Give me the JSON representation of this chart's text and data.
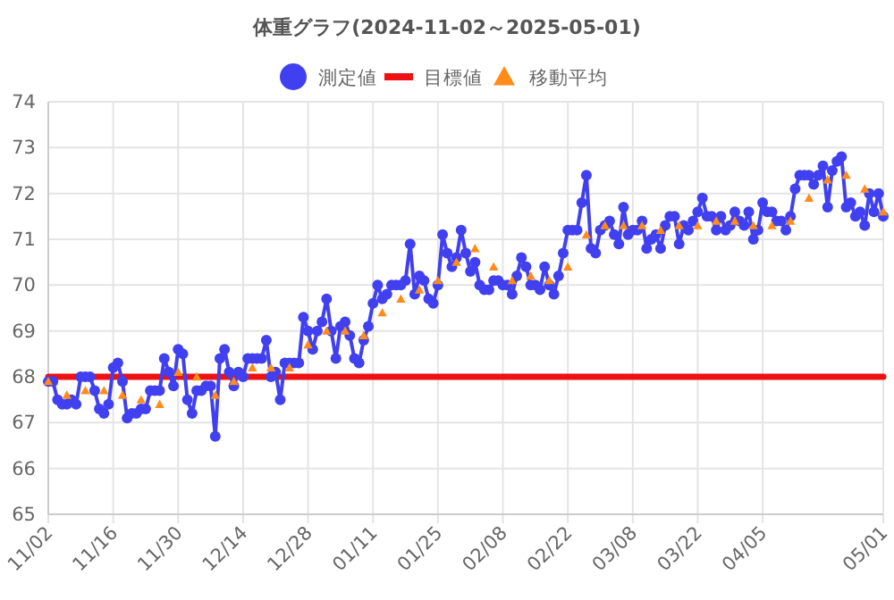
{
  "chart_data": {
    "type": "line",
    "title": "体重グラフ(2024-11-02～2025-05-01)",
    "xlim": [
      "2024-11-02",
      "2025-05-01"
    ],
    "xticks": [
      {
        "value": "2024-11-02",
        "label": "11/02"
      },
      {
        "value": "2024-11-16",
        "label": "11/16"
      },
      {
        "value": "2024-11-30",
        "label": "11/30"
      },
      {
        "value": "2024-12-14",
        "label": "12/14"
      },
      {
        "value": "2024-12-28",
        "label": "12/28"
      },
      {
        "value": "2025-01-11",
        "label": "01/11"
      },
      {
        "value": "2025-01-25",
        "label": "01/25"
      },
      {
        "value": "2025-02-08",
        "label": "02/08"
      },
      {
        "value": "2025-02-22",
        "label": "02/22"
      },
      {
        "value": "2025-03-08",
        "label": "03/08"
      },
      {
        "value": "2025-03-22",
        "label": "03/22"
      },
      {
        "value": "2025-04-05",
        "label": "04/05"
      },
      {
        "value": "2025-05-01",
        "label": "05/01"
      }
    ],
    "ylim": [
      65,
      74
    ],
    "yticks": [
      65,
      66,
      67,
      68,
      69,
      70,
      71,
      72,
      73,
      74
    ],
    "grid": true,
    "legend": "top",
    "series": [
      {
        "name": "測定値",
        "marker": "circle",
        "color": "#4040f0",
        "x": [
          "2024-11-02",
          "2024-11-03",
          "2024-11-04",
          "2024-11-05",
          "2024-11-06",
          "2024-11-07",
          "2024-11-08",
          "2024-11-09",
          "2024-11-10",
          "2024-11-11",
          "2024-11-12",
          "2024-11-13",
          "2024-11-14",
          "2024-11-15",
          "2024-11-16",
          "2024-11-17",
          "2024-11-18",
          "2024-11-19",
          "2024-11-20",
          "2024-11-21",
          "2024-11-22",
          "2024-11-23",
          "2024-11-24",
          "2024-11-25",
          "2024-11-26",
          "2024-11-27",
          "2024-11-28",
          "2024-11-29",
          "2024-11-30",
          "2024-12-01",
          "2024-12-02",
          "2024-12-03",
          "2024-12-04",
          "2024-12-05",
          "2024-12-06",
          "2024-12-07",
          "2024-12-08",
          "2024-12-09",
          "2024-12-10",
          "2024-12-11",
          "2024-12-12",
          "2024-12-13",
          "2024-12-14",
          "2024-12-15",
          "2024-12-16",
          "2024-12-17",
          "2024-12-18",
          "2024-12-19",
          "2024-12-20",
          "2024-12-21",
          "2024-12-22",
          "2024-12-23",
          "2024-12-24",
          "2024-12-25",
          "2024-12-26",
          "2024-12-27",
          "2024-12-28",
          "2024-12-29",
          "2024-12-30",
          "2024-12-31",
          "2025-01-01",
          "2025-01-02",
          "2025-01-03",
          "2025-01-04",
          "2025-01-05",
          "2025-01-06",
          "2025-01-07",
          "2025-01-08",
          "2025-01-09",
          "2025-01-10",
          "2025-01-11",
          "2025-01-12",
          "2025-01-13",
          "2025-01-14",
          "2025-01-15",
          "2025-01-16",
          "2025-01-17",
          "2025-01-18",
          "2025-01-19",
          "2025-01-20",
          "2025-01-21",
          "2025-01-22",
          "2025-01-23",
          "2025-01-24",
          "2025-01-25",
          "2025-01-26",
          "2025-01-27",
          "2025-01-28",
          "2025-01-29",
          "2025-01-30",
          "2025-01-31",
          "2025-02-01",
          "2025-02-02",
          "2025-02-03",
          "2025-02-04",
          "2025-02-05",
          "2025-02-06",
          "2025-02-07",
          "2025-02-08",
          "2025-02-09",
          "2025-02-10",
          "2025-02-11",
          "2025-02-12",
          "2025-02-13",
          "2025-02-14",
          "2025-02-15",
          "2025-02-16",
          "2025-02-17",
          "2025-02-18",
          "2025-02-19",
          "2025-02-20",
          "2025-02-21",
          "2025-02-22",
          "2025-02-23",
          "2025-02-24",
          "2025-02-25",
          "2025-02-26",
          "2025-02-27",
          "2025-02-28",
          "2025-03-01",
          "2025-03-02",
          "2025-03-03",
          "2025-03-04",
          "2025-03-05",
          "2025-03-06",
          "2025-03-07",
          "2025-03-08",
          "2025-03-09",
          "2025-03-10",
          "2025-03-11",
          "2025-03-12",
          "2025-03-13",
          "2025-03-14",
          "2025-03-15",
          "2025-03-16",
          "2025-03-17",
          "2025-03-18",
          "2025-03-19",
          "2025-03-20",
          "2025-03-21",
          "2025-03-22",
          "2025-03-23",
          "2025-03-24",
          "2025-03-25",
          "2025-03-26",
          "2025-03-27",
          "2025-03-28",
          "2025-03-29",
          "2025-03-30",
          "2025-03-31",
          "2025-04-01",
          "2025-04-02",
          "2025-04-03",
          "2025-04-04",
          "2025-04-05",
          "2025-04-06",
          "2025-04-07",
          "2025-04-08",
          "2025-04-09",
          "2025-04-10",
          "2025-04-11",
          "2025-04-12",
          "2025-04-13",
          "2025-04-14",
          "2025-04-15",
          "2025-04-16",
          "2025-04-17",
          "2025-04-18",
          "2025-04-19",
          "2025-04-20",
          "2025-04-21",
          "2025-04-22",
          "2025-04-23",
          "2025-04-24",
          "2025-04-25",
          "2025-04-26",
          "2025-04-27",
          "2025-04-28",
          "2025-04-29",
          "2025-04-30",
          "2025-05-01"
        ],
        "values": [
          67.9,
          67.9,
          67.5,
          67.4,
          67.4,
          67.5,
          67.4,
          68.0,
          68.0,
          68.0,
          67.7,
          67.3,
          67.2,
          67.4,
          68.2,
          68.3,
          67.9,
          67.1,
          67.2,
          67.2,
          67.3,
          67.3,
          67.7,
          67.7,
          67.7,
          68.4,
          68.1,
          67.8,
          68.6,
          68.5,
          67.5,
          67.2,
          67.7,
          67.7,
          67.8,
          67.8,
          66.7,
          68.4,
          68.6,
          68.1,
          67.8,
          68.1,
          68.0,
          68.4,
          68.4,
          68.4,
          68.4,
          68.8,
          68.0,
          68.1,
          67.5,
          68.3,
          68.3,
          68.3,
          68.3,
          69.3,
          69.0,
          68.6,
          69.0,
          69.2,
          69.7,
          69.0,
          68.4,
          69.1,
          69.2,
          68.9,
          68.4,
          68.3,
          68.8,
          69.1,
          69.6,
          70.0,
          69.7,
          69.8,
          70.0,
          70.0,
          70.0,
          70.1,
          70.9,
          69.8,
          70.2,
          70.1,
          69.7,
          69.6,
          70.0,
          71.1,
          70.7,
          70.4,
          70.6,
          71.2,
          70.7,
          70.3,
          70.5,
          70.0,
          69.9,
          69.9,
          70.1,
          70.1,
          70.0,
          70.0,
          69.8,
          70.2,
          70.6,
          70.4,
          70.0,
          70.0,
          69.9,
          70.4,
          70.0,
          69.8,
          70.2,
          70.7,
          71.2,
          71.2,
          71.2,
          71.8,
          72.4,
          70.8,
          70.7,
          71.2,
          71.3,
          71.4,
          71.1,
          70.9,
          71.7,
          71.1,
          71.2,
          71.2,
          71.4,
          70.8,
          71.0,
          71.1,
          70.8,
          71.3,
          71.5,
          71.5,
          70.9,
          71.3,
          71.2,
          71.4,
          71.6,
          71.9,
          71.5,
          71.5,
          71.2,
          71.5,
          71.2,
          71.3,
          71.6,
          71.4,
          71.3,
          71.6,
          71.0,
          71.2,
          71.8,
          71.6,
          71.6,
          71.4,
          71.4,
          71.2,
          71.5,
          72.1,
          72.4,
          72.4,
          72.4,
          72.2,
          72.4,
          72.6,
          71.7,
          72.5,
          72.7,
          72.8,
          71.7,
          71.8,
          71.5,
          71.6,
          71.3,
          72.0,
          71.6,
          72.0,
          71.5
        ]
      },
      {
        "name": "目標値",
        "type": "line",
        "marker": "none",
        "color": "#ee1111",
        "x": [
          "2024-11-02",
          "2025-05-01"
        ],
        "values": [
          68,
          68
        ]
      },
      {
        "name": "移動平均",
        "type": "scatter",
        "marker": "triangle",
        "color": "#ff8c1a",
        "x": [
          "2024-11-02",
          "2024-11-06",
          "2024-11-10",
          "2024-11-14",
          "2024-11-18",
          "2024-11-22",
          "2024-11-26",
          "2024-11-30",
          "2024-12-04",
          "2024-12-08",
          "2024-12-12",
          "2024-12-16",
          "2024-12-20",
          "2024-12-24",
          "2024-12-28",
          "2025-01-01",
          "2025-01-05",
          "2025-01-09",
          "2025-01-13",
          "2025-01-17",
          "2025-01-21",
          "2025-01-25",
          "2025-01-29",
          "2025-02-02",
          "2025-02-06",
          "2025-02-10",
          "2025-02-14",
          "2025-02-18",
          "2025-02-22",
          "2025-02-26",
          "2025-03-02",
          "2025-03-06",
          "2025-03-10",
          "2025-03-14",
          "2025-03-18",
          "2025-03-22",
          "2025-03-26",
          "2025-03-30",
          "2025-04-03",
          "2025-04-07",
          "2025-04-11",
          "2025-04-15",
          "2025-04-19",
          "2025-04-23",
          "2025-04-27",
          "2025-05-01"
        ],
        "values": [
          67.9,
          67.6,
          67.7,
          67.7,
          67.6,
          67.5,
          67.4,
          68.1,
          68.0,
          67.6,
          67.9,
          68.2,
          68.2,
          68.2,
          68.7,
          69.0,
          69.0,
          68.9,
          69.4,
          69.7,
          69.9,
          70.1,
          70.5,
          70.8,
          70.4,
          70.1,
          70.2,
          70.1,
          70.4,
          71.1,
          71.3,
          71.3,
          71.3,
          71.2,
          71.3,
          71.3,
          71.4,
          71.4,
          71.3,
          71.3,
          71.4,
          71.9,
          72.3,
          72.4,
          72.1,
          71.6
        ]
      }
    ]
  }
}
